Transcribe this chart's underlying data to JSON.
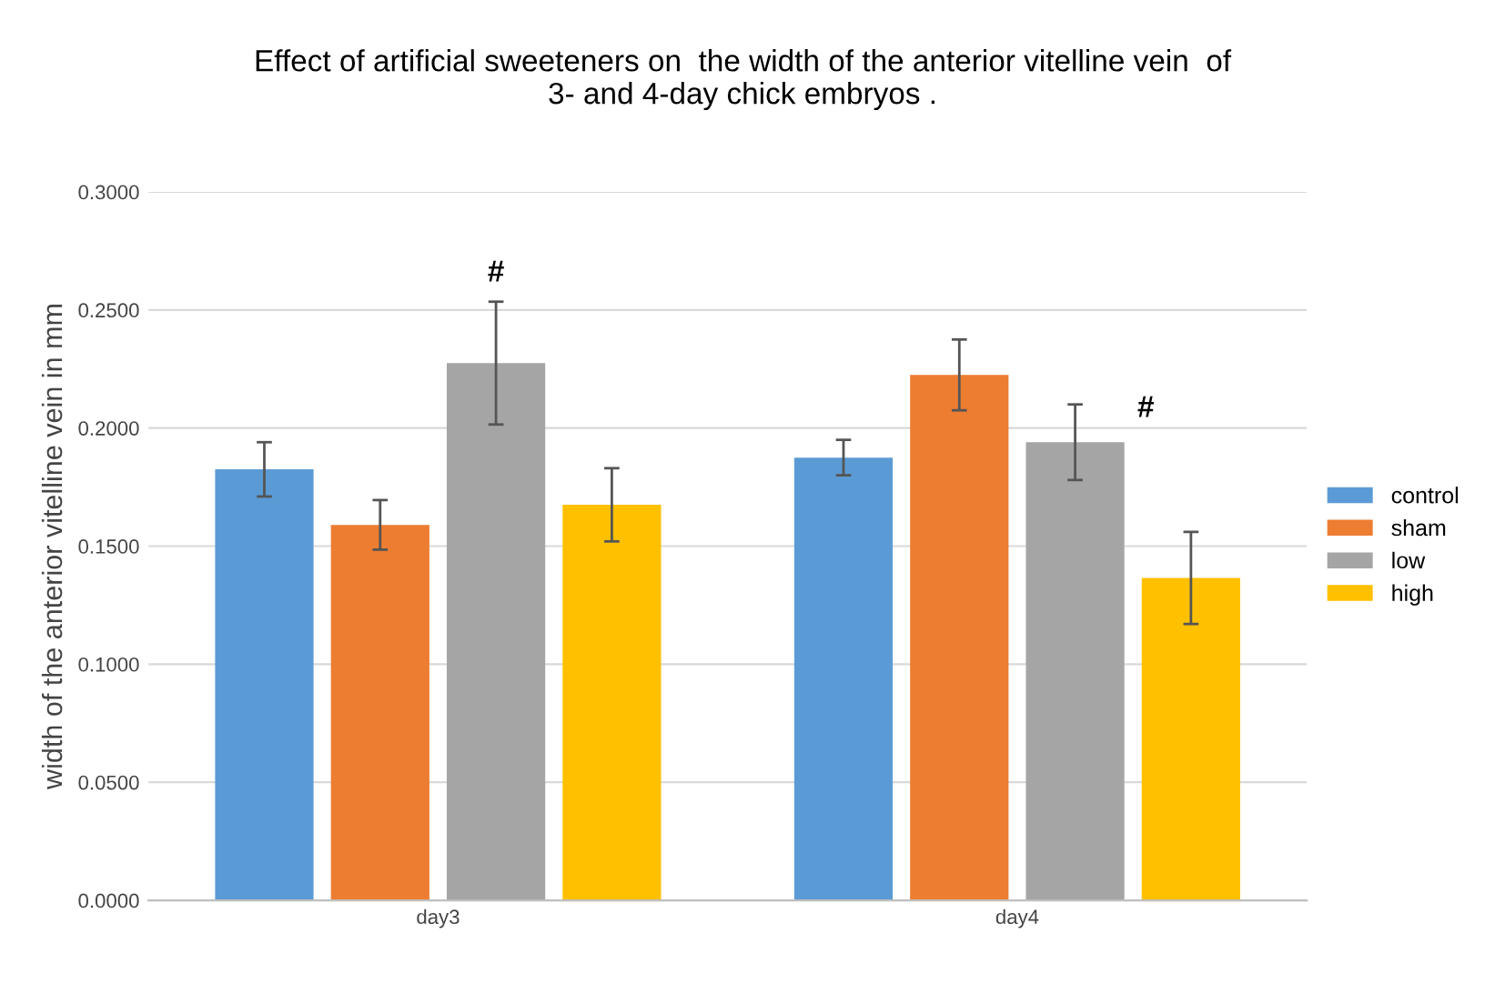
{
  "chart_data": {
    "type": "bar",
    "title": "Effect of artificial sweeteners on  the width of the anterior vitelline vein  of\n3- and 4-day chick embryos .",
    "ylabel": "width of the anterior vitelline vein in mm",
    "categories": [
      "day3",
      "day4"
    ],
    "series": [
      {
        "name": "control",
        "color": "#5b9bd5",
        "values": [
          0.1825,
          0.1875
        ],
        "errors": [
          0.0115,
          0.0075
        ]
      },
      {
        "name": "sham",
        "color": "#ed7d31",
        "values": [
          0.159,
          0.2225
        ],
        "errors": [
          0.0105,
          0.015
        ]
      },
      {
        "name": "low",
        "color": "#a5a5a5",
        "values": [
          0.2275,
          0.194
        ],
        "errors": [
          0.026,
          0.016
        ]
      },
      {
        "name": "high",
        "color": "#ffc000",
        "values": [
          0.1675,
          0.1365
        ],
        "errors": [
          0.0155,
          0.0195
        ]
      }
    ],
    "ylim": [
      0,
      0.3
    ],
    "yticks": [
      {
        "value": 0,
        "label": "0.0000"
      },
      {
        "value": 0.05,
        "label": "0.0500"
      },
      {
        "value": 0.1,
        "label": "0.1000"
      },
      {
        "value": 0.15,
        "label": "0.1500"
      },
      {
        "value": 0.2,
        "label": "0.2000"
      },
      {
        "value": 0.25,
        "label": "0.2500"
      },
      {
        "value": 0.3,
        "label": "0.3000"
      }
    ],
    "annotations": [
      "#",
      "#"
    ],
    "grid": "y",
    "legend": "right"
  }
}
